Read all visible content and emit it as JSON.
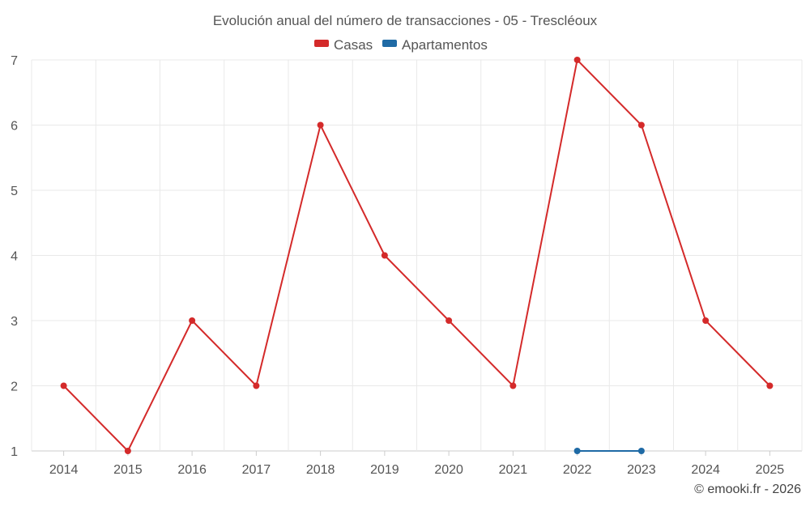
{
  "chart_data": {
    "type": "line",
    "title": "Evolución anual del número de transacciones - 05 - Trescléoux",
    "categories": [
      "2014",
      "2015",
      "2016",
      "2017",
      "2018",
      "2019",
      "2020",
      "2021",
      "2022",
      "2023",
      "2024",
      "2025"
    ],
    "series": [
      {
        "name": "Casas",
        "color": "#d42a2a",
        "values": [
          2,
          1,
          3,
          2,
          6,
          4,
          3,
          2,
          7,
          6,
          3,
          2
        ]
      },
      {
        "name": "Apartamentos",
        "color": "#1f6aa5",
        "values": [
          null,
          null,
          null,
          null,
          null,
          null,
          null,
          null,
          1,
          1,
          null,
          null
        ]
      }
    ],
    "ylim": [
      1,
      7
    ],
    "yticks": [
      1,
      2,
      3,
      4,
      5,
      6,
      7
    ],
    "grid": true,
    "legend_position": "top-center",
    "xlabel": "",
    "ylabel": ""
  },
  "credit": "© emooki.fr - 2026"
}
